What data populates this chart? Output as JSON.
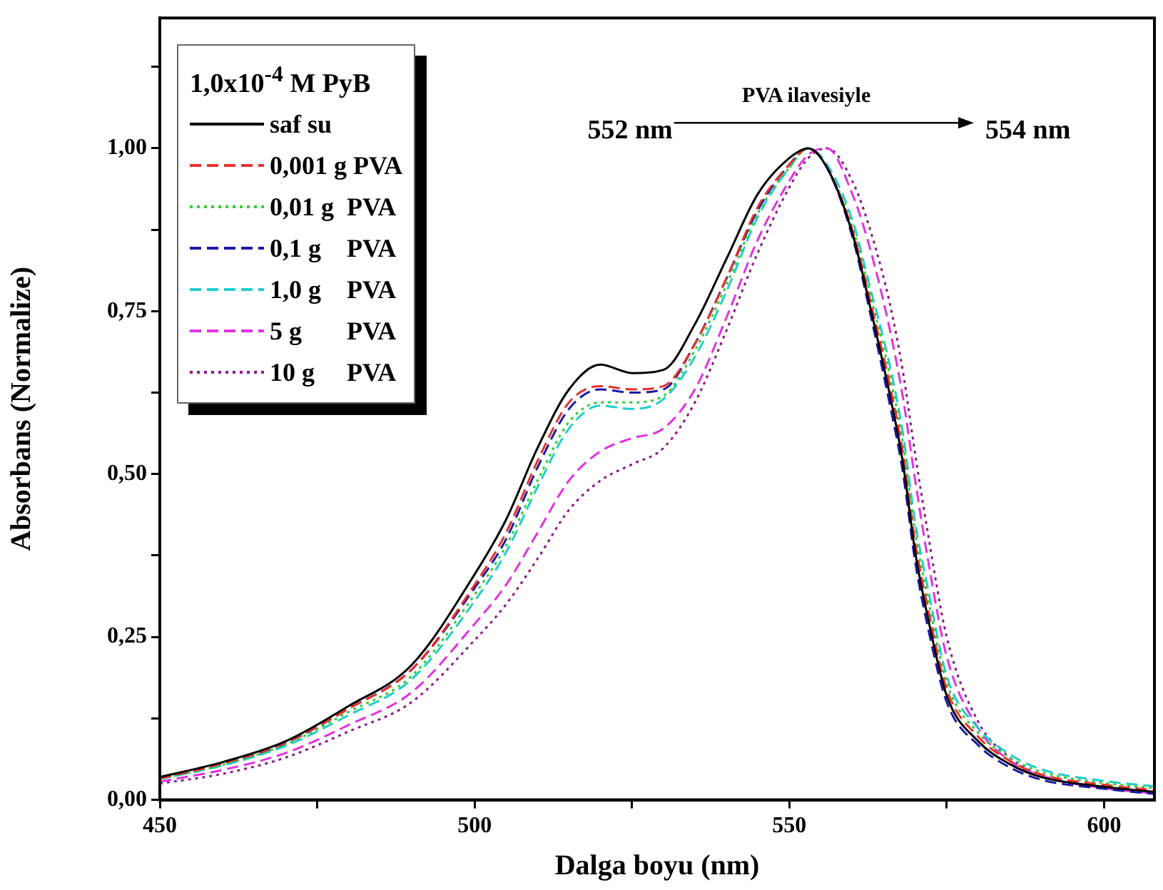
{
  "chart_data": {
    "type": "line",
    "xlabel": "Dalga boyu (nm)",
    "ylabel": "Absorbans (Normalize)",
    "legend_title": "1,0x10$^{-4}$ M PyB",
    "legend": "top left",
    "grid": false,
    "x": [
      450,
      460,
      470,
      480,
      490,
      500,
      505,
      510,
      515,
      520,
      525,
      530,
      535,
      540,
      545,
      550,
      553,
      556,
      560,
      563,
      566,
      568,
      570,
      572,
      575,
      580,
      585,
      590,
      600,
      608
    ],
    "xlim": [
      450,
      608
    ],
    "ylim": [
      0,
      1.2
    ],
    "xticks": [
      450,
      {
        "value": 475,
        "label": null
      },
      500,
      {
        "value": 525,
        "label": null
      },
      550,
      {
        "value": 575,
        "label": null
      },
      600
    ],
    "yticks": [
      {
        "value": 0,
        "label": "0,00"
      },
      {
        "value": 0.125,
        "label": null
      },
      {
        "value": 0.25,
        "label": "0,25"
      },
      {
        "value": 0.375,
        "label": null
      },
      {
        "value": 0.5,
        "label": "0,50"
      },
      {
        "value": 0.625,
        "label": null
      },
      {
        "value": 0.75,
        "label": "0,75"
      },
      {
        "value": 0.875,
        "label": null
      },
      {
        "value": 1,
        "label": "1,00"
      },
      {
        "value": 1.125,
        "label": null
      }
    ],
    "series": [
      {
        "name": "saf su",
        "color": "#000000",
        "line_style": "solid",
        "values": [
          0.035,
          0.058,
          0.09,
          0.144,
          0.207,
          0.346,
          0.43,
          0.54,
          0.63,
          0.668,
          0.655,
          0.66,
          0.73,
          0.83,
          0.93,
          0.985,
          1.0,
          0.97,
          0.87,
          0.75,
          0.62,
          0.52,
          0.38,
          0.28,
          0.16,
          0.09,
          0.055,
          0.035,
          0.02,
          0.012
        ]
      },
      {
        "name": "0,001 g PVA",
        "color": "#e8312b",
        "line_style": "dashed",
        "values": [
          0.033,
          0.056,
          0.088,
          0.14,
          0.2,
          0.33,
          0.41,
          0.52,
          0.61,
          0.635,
          0.63,
          0.635,
          0.7,
          0.8,
          0.91,
          0.975,
          1.0,
          0.97,
          0.875,
          0.76,
          0.635,
          0.535,
          0.395,
          0.295,
          0.17,
          0.097,
          0.06,
          0.039,
          0.023,
          0.015
        ]
      },
      {
        "name": "0,01 g  PVA",
        "color": "#33cc33",
        "line_style": "dotted",
        "values": [
          0.032,
          0.054,
          0.085,
          0.135,
          0.19,
          0.315,
          0.39,
          0.49,
          0.58,
          0.61,
          0.61,
          0.62,
          0.69,
          0.79,
          0.9,
          0.97,
          1.0,
          0.97,
          0.88,
          0.77,
          0.65,
          0.55,
          0.41,
          0.31,
          0.18,
          0.103,
          0.065,
          0.043,
          0.026,
          0.018
        ]
      },
      {
        "name": "0,1 g    PVA",
        "color": "#1a1aa6",
        "line_style": "dashed",
        "values": [
          0.033,
          0.056,
          0.087,
          0.14,
          0.2,
          0.325,
          0.4,
          0.51,
          0.6,
          0.63,
          0.625,
          0.63,
          0.7,
          0.8,
          0.905,
          0.975,
          1.0,
          0.97,
          0.865,
          0.74,
          0.605,
          0.505,
          0.365,
          0.265,
          0.15,
          0.084,
          0.05,
          0.031,
          0.017,
          0.009
        ]
      },
      {
        "name": "1,0 g    PVA",
        "color": "#22cccc",
        "line_style": "dashed",
        "values": [
          0.032,
          0.053,
          0.083,
          0.13,
          0.185,
          0.305,
          0.38,
          0.48,
          0.57,
          0.605,
          0.6,
          0.615,
          0.68,
          0.78,
          0.895,
          0.97,
          1.0,
          0.975,
          0.89,
          0.78,
          0.665,
          0.565,
          0.425,
          0.325,
          0.19,
          0.11,
          0.07,
          0.047,
          0.029,
          0.021
        ]
      },
      {
        "name": "5 g       PVA",
        "color": "#e033e0",
        "line_style": "dashed",
        "values": [
          0.028,
          0.046,
          0.072,
          0.115,
          0.165,
          0.27,
          0.33,
          0.41,
          0.49,
          0.535,
          0.555,
          0.57,
          0.63,
          0.74,
          0.86,
          0.95,
          0.99,
          1.0,
          0.93,
          0.84,
          0.72,
          0.62,
          0.49,
          0.37,
          0.22,
          0.11,
          0.06,
          0.037,
          0.018,
          0.01
        ]
      },
      {
        "name": "10 g     PVA",
        "color": "#8b1a8b",
        "line_style": "dotted",
        "values": [
          0.025,
          0.04,
          0.065,
          0.105,
          0.15,
          0.245,
          0.3,
          0.37,
          0.445,
          0.49,
          0.515,
          0.54,
          0.61,
          0.72,
          0.84,
          0.94,
          0.985,
          1.0,
          0.95,
          0.87,
          0.76,
          0.66,
          0.53,
          0.41,
          0.25,
          0.12,
          0.065,
          0.038,
          0.018,
          0.01
        ]
      }
    ],
    "annotations": [
      "PVA ilavesiyle",
      "552 nm",
      "554 nm"
    ]
  }
}
